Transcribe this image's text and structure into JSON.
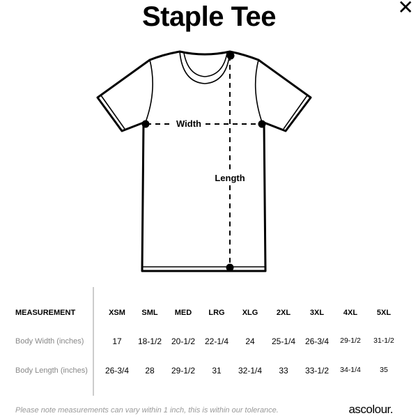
{
  "title": "Staple Tee",
  "close_icon": "close-icon",
  "diagram": {
    "width_label": "Width",
    "length_label": "Length"
  },
  "table": {
    "header_label": "MEASUREMENT",
    "sizes": [
      "XSM",
      "SML",
      "MED",
      "LRG",
      "XLG",
      "2XL",
      "3XL",
      "4XL",
      "5XL"
    ],
    "rows": [
      {
        "label": "Body Width (inches)",
        "values": [
          "17",
          "18-1/2",
          "20-1/2",
          "22-1/4",
          "24",
          "25-1/4",
          "26-3/4",
          "29-1/2",
          "31-1/2"
        ]
      },
      {
        "label": "Body Length (inches)",
        "values": [
          "26-3/4",
          "28",
          "29-1/2",
          "31",
          "32-1/4",
          "33",
          "33-1/2",
          "34-1/4",
          "35"
        ]
      }
    ]
  },
  "footer": {
    "note": "Please note measurements can vary within 1 inch, this is within our tolerance.",
    "brand": "ascolour."
  }
}
